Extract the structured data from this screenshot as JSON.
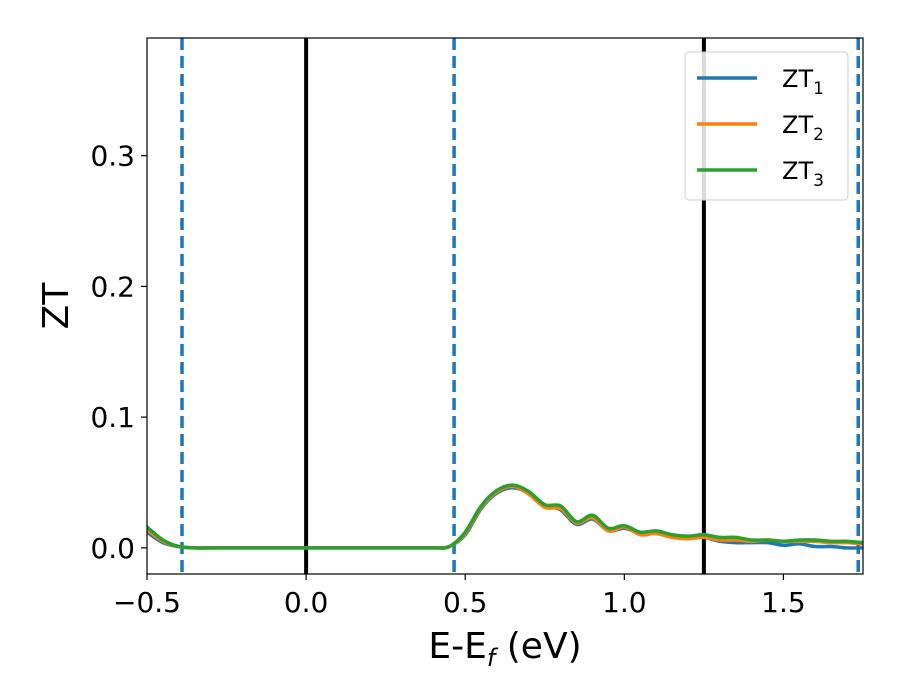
{
  "chart_data": {
    "type": "line",
    "xlabel": "E-E",
    "xlabel_sub": "f",
    "xlabel_unit": " (eV)",
    "ylabel": "ZT",
    "xlim": [
      -0.5,
      1.75
    ],
    "ylim": [
      -0.02,
      0.39
    ],
    "xticks": [
      -0.5,
      0.0,
      0.5,
      1.0,
      1.5
    ],
    "xtick_labels": [
      "−0.5",
      "0.0",
      "0.5",
      "1.0",
      "1.5"
    ],
    "yticks": [
      0.0,
      0.1,
      0.2,
      0.3
    ],
    "ytick_labels": [
      "0.0",
      "0.1",
      "0.2",
      "0.3"
    ],
    "grid": false,
    "legend_position": "top-right",
    "vlines": [
      {
        "x": -0.39,
        "style": "dashed",
        "color": "#1f77b4"
      },
      {
        "x": 0.0,
        "style": "solid",
        "color": "#000000"
      },
      {
        "x": 0.465,
        "style": "dashed",
        "color": "#1f77b4"
      },
      {
        "x": 1.25,
        "style": "solid",
        "color": "#000000"
      },
      {
        "x": 1.735,
        "style": "dashed",
        "color": "#1f77b4"
      }
    ],
    "series": [
      {
        "name": "ZT",
        "name_sub": "1",
        "color": "#1f77b4",
        "x": [
          -0.5,
          -0.45,
          -0.4,
          -0.35,
          -0.3,
          0.0,
          0.3,
          0.4,
          0.45,
          0.5,
          0.55,
          0.6,
          0.65,
          0.7,
          0.75,
          0.8,
          0.85,
          0.9,
          0.95,
          1.0,
          1.05,
          1.1,
          1.15,
          1.2,
          1.25,
          1.3,
          1.35,
          1.4,
          1.45,
          1.5,
          1.55,
          1.6,
          1.65,
          1.7,
          1.75
        ],
        "y": [
          0.012,
          0.004,
          0.001,
          0.0,
          0.0,
          0.0,
          0.0,
          0.0,
          0.001,
          0.01,
          0.03,
          0.042,
          0.046,
          0.042,
          0.033,
          0.029,
          0.018,
          0.022,
          0.013,
          0.015,
          0.011,
          0.011,
          0.009,
          0.008,
          0.008,
          0.005,
          0.004,
          0.004,
          0.004,
          0.002,
          0.003,
          0.001,
          0.001,
          0.0,
          0.0
        ]
      },
      {
        "name": "ZT",
        "name_sub": "2",
        "color": "#ff7f0e",
        "x": [
          -0.5,
          -0.45,
          -0.4,
          -0.35,
          -0.3,
          0.0,
          0.3,
          0.4,
          0.45,
          0.5,
          0.55,
          0.6,
          0.65,
          0.7,
          0.75,
          0.8,
          0.85,
          0.9,
          0.95,
          1.0,
          1.05,
          1.1,
          1.15,
          1.2,
          1.25,
          1.3,
          1.35,
          1.4,
          1.45,
          1.5,
          1.55,
          1.6,
          1.65,
          1.7,
          1.75
        ],
        "y": [
          0.014,
          0.005,
          0.001,
          0.0,
          0.0,
          0.0,
          0.0,
          0.0,
          0.001,
          0.011,
          0.031,
          0.043,
          0.047,
          0.041,
          0.031,
          0.03,
          0.019,
          0.023,
          0.013,
          0.016,
          0.01,
          0.011,
          0.008,
          0.007,
          0.008,
          0.006,
          0.006,
          0.005,
          0.006,
          0.005,
          0.005,
          0.005,
          0.004,
          0.004,
          0.003
        ]
      },
      {
        "name": "ZT",
        "name_sub": "3",
        "color": "#2ca02c",
        "x": [
          -0.5,
          -0.45,
          -0.4,
          -0.35,
          -0.3,
          0.0,
          0.3,
          0.4,
          0.45,
          0.5,
          0.55,
          0.6,
          0.65,
          0.7,
          0.75,
          0.8,
          0.85,
          0.9,
          0.95,
          1.0,
          1.05,
          1.1,
          1.15,
          1.2,
          1.25,
          1.3,
          1.35,
          1.4,
          1.45,
          1.5,
          1.55,
          1.6,
          1.65,
          1.7,
          1.75
        ],
        "y": [
          0.016,
          0.006,
          0.001,
          0.0,
          0.0,
          0.0,
          0.0,
          0.0,
          0.001,
          0.012,
          0.032,
          0.044,
          0.048,
          0.043,
          0.033,
          0.032,
          0.02,
          0.025,
          0.015,
          0.017,
          0.012,
          0.013,
          0.01,
          0.009,
          0.01,
          0.008,
          0.008,
          0.006,
          0.006,
          0.005,
          0.006,
          0.006,
          0.005,
          0.005,
          0.004
        ]
      }
    ]
  }
}
